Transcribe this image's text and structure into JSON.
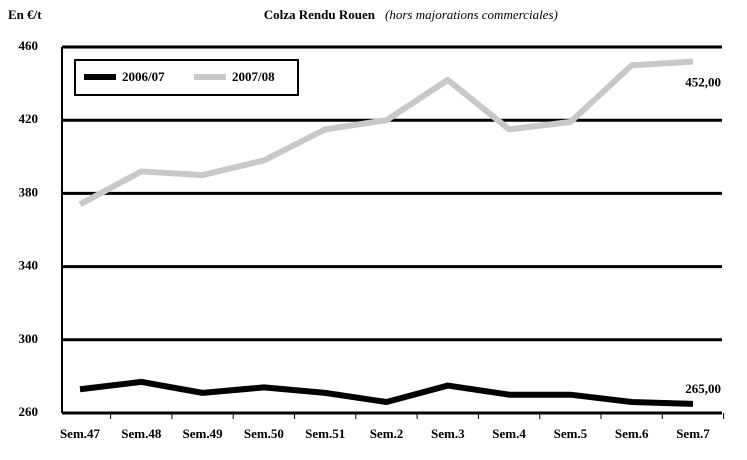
{
  "chart_data": {
    "type": "line",
    "title": "Colza Rendu Rouen",
    "subtitle": "(hors majorations commerciales)",
    "y_label": "En €/t",
    "categories": [
      "Sem.47",
      "Sem.48",
      "Sem.49",
      "Sem.50",
      "Sem.51",
      "Sem.2",
      "Sem.3",
      "Sem.4",
      "Sem.5",
      "Sem.6",
      "Sem.7"
    ],
    "series": [
      {
        "name": "2006/07",
        "color": "#000000",
        "values": [
          273,
          277,
          271,
          274,
          271,
          266,
          275,
          270,
          270,
          266,
          265
        ],
        "value_labels": [
          null,
          null,
          null,
          null,
          null,
          null,
          null,
          null,
          null,
          null,
          "265,00"
        ]
      },
      {
        "name": "2007/08",
        "color": "#c8c8c8",
        "values": [
          374,
          392,
          390,
          398,
          415,
          420,
          442,
          415,
          419,
          450,
          452
        ],
        "value_labels": [
          null,
          null,
          null,
          null,
          null,
          null,
          null,
          null,
          null,
          null,
          "452,00"
        ]
      }
    ],
    "ylim": [
      260,
      460
    ],
    "yticks": [
      260,
      300,
      340,
      380,
      420,
      460
    ],
    "grid": true,
    "legend": "upper left"
  }
}
